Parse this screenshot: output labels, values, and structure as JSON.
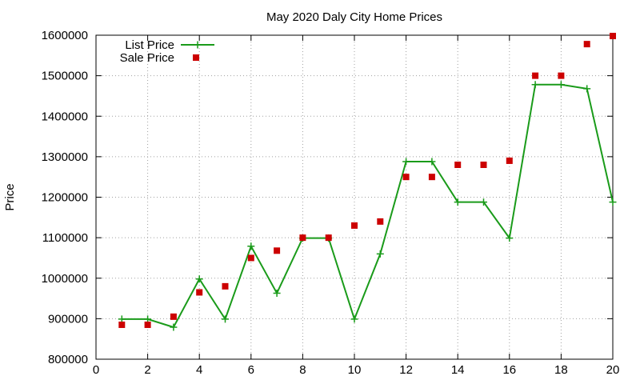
{
  "chart_data": {
    "type": "scatter",
    "title": "May 2020 Daly City Home Prices",
    "xlabel": "",
    "ylabel": "Price",
    "xlim": [
      0,
      20
    ],
    "ylim": [
      800000,
      1600000
    ],
    "xticks": [
      0,
      2,
      4,
      6,
      8,
      10,
      12,
      14,
      16,
      18,
      20
    ],
    "yticks": [
      800000,
      900000,
      1000000,
      1100000,
      1200000,
      1300000,
      1400000,
      1500000,
      1600000
    ],
    "grid": true,
    "legend_position": "top-left",
    "series": [
      {
        "name": "List Price",
        "style": "linespoints",
        "color": "#1a9b1a",
        "x": [
          1,
          2,
          3,
          4,
          5,
          6,
          7,
          8,
          9,
          10,
          11,
          12,
          13,
          14,
          15,
          16,
          17,
          18,
          19,
          20
        ],
        "y": [
          899000,
          899000,
          879000,
          998000,
          899000,
          1079000,
          963000,
          1099000,
          1099000,
          899000,
          1060000,
          1288000,
          1288000,
          1188000,
          1188000,
          1099000,
          1478000,
          1478000,
          1468000,
          1188000
        ]
      },
      {
        "name": "Sale Price",
        "style": "points",
        "color": "#cc0000",
        "x": [
          1,
          2,
          3,
          4,
          5,
          6,
          7,
          8,
          9,
          10,
          11,
          12,
          13,
          14,
          15,
          16,
          17,
          18,
          19,
          20
        ],
        "y": [
          885000,
          885000,
          905000,
          965000,
          980000,
          1050000,
          1068000,
          1100000,
          1100000,
          1130000,
          1140000,
          1250000,
          1250000,
          1280000,
          1280000,
          1290000,
          1500000,
          1500000,
          1578000,
          1598000
        ]
      }
    ]
  }
}
